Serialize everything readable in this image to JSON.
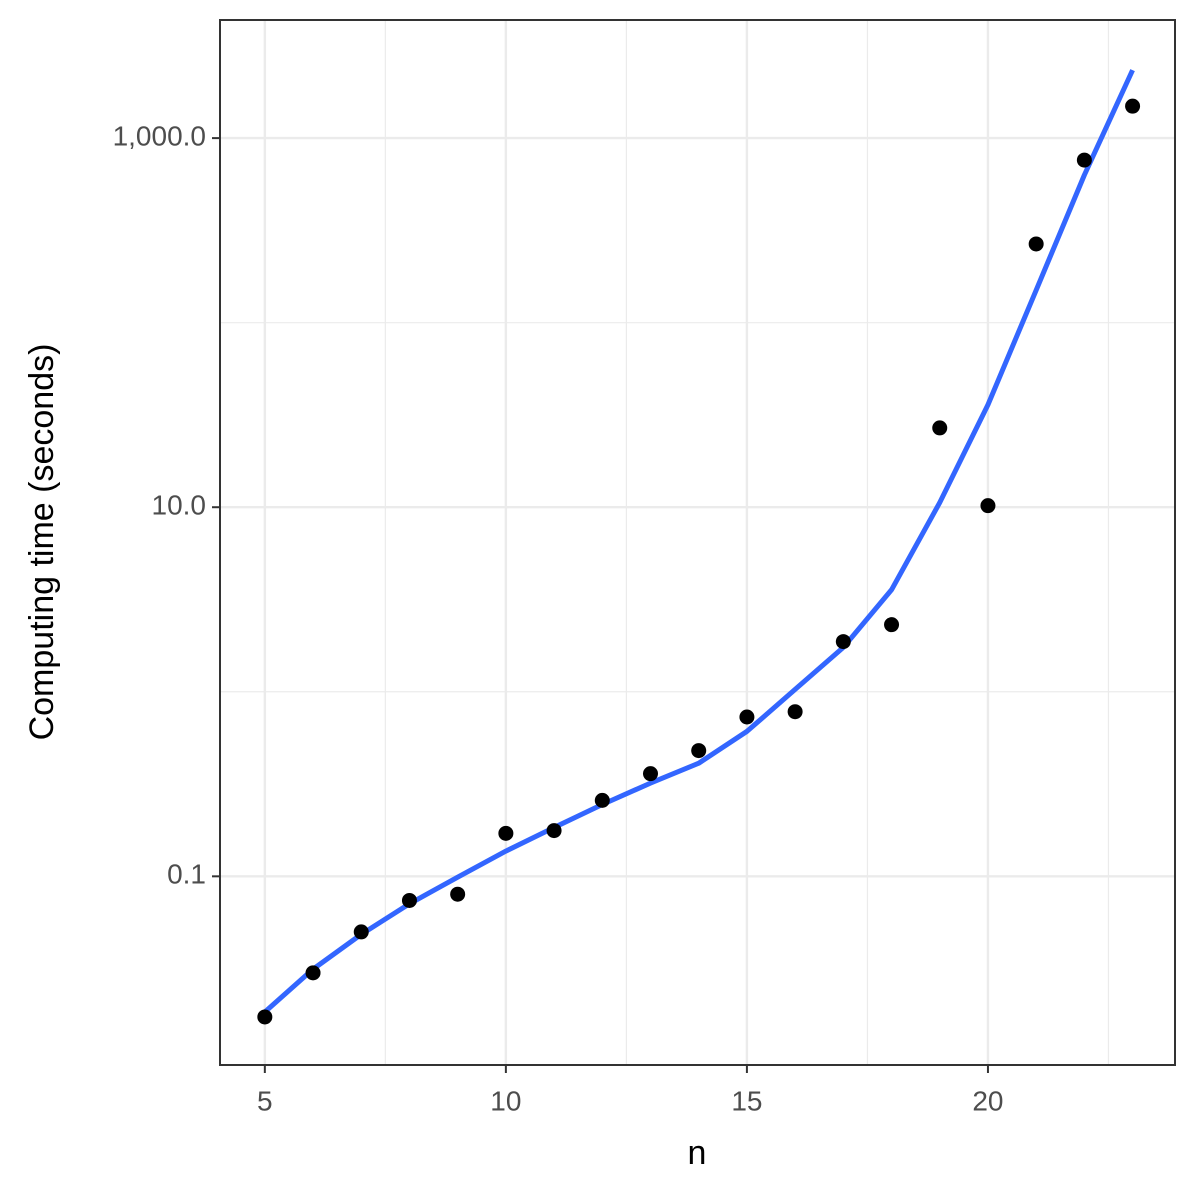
{
  "chart_data": {
    "type": "scatter",
    "x_label": "n",
    "y_label": "Computing time (seconds)",
    "x": [
      5,
      6,
      7,
      8,
      9,
      10,
      11,
      12,
      13,
      14,
      15,
      16,
      17,
      18,
      19,
      20,
      21,
      22,
      23
    ],
    "series": [
      {
        "kind": "points",
        "color": "#000000",
        "values": [
          0.0173,
          0.03,
          0.05,
          0.074,
          0.08,
          0.171,
          0.177,
          0.258,
          0.36,
          0.48,
          0.73,
          0.78,
          1.87,
          2.31,
          26.9,
          10.2,
          267,
          760,
          1490
        ]
      },
      {
        "kind": "line",
        "color": "#3366ff",
        "values": [
          0.0184,
          0.0314,
          0.0485,
          0.071,
          0.099,
          0.137,
          0.184,
          0.245,
          0.32,
          0.41,
          0.61,
          1.03,
          1.74,
          3.57,
          10.6,
          35.9,
          150,
          631,
          2335
        ]
      }
    ],
    "xlim": [
      4.07,
      23.88
    ],
    "ylim": [
      0.0095,
      4365
    ],
    "yscale": "log",
    "xticks": [
      5,
      10,
      15,
      20
    ],
    "yticks": [
      0.1,
      {
        "value": 10,
        "label": "10.0"
      },
      {
        "value": 1000,
        "label": "1,000.0"
      }
    ],
    "x_minor_grid": [
      7.5,
      12.5,
      17.5,
      22.5
    ],
    "y_minor_grid": [
      1,
      100
    ],
    "grid": true
  }
}
